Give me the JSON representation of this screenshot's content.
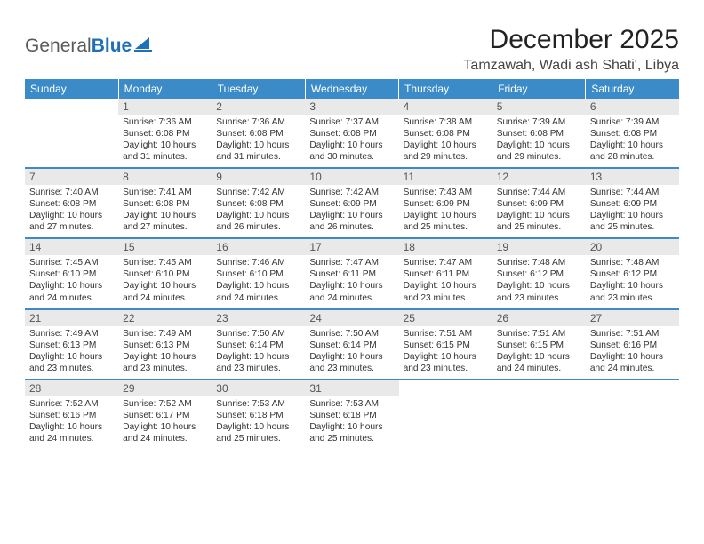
{
  "logo": {
    "gray": "General",
    "blue": "Blue",
    "sailColor": "#1f70b8"
  },
  "title": "December 2025",
  "location": "Tamzawah, Wadi ash Shati', Libya",
  "colors": {
    "headerBg": "#3b8bc8",
    "headerText": "#ffffff",
    "dayNumBg": "#e9e9e9",
    "rowBorder": "#3b8bc8"
  },
  "dayHeaders": [
    "Sunday",
    "Monday",
    "Tuesday",
    "Wednesday",
    "Thursday",
    "Friday",
    "Saturday"
  ],
  "weeks": [
    [
      null,
      {
        "n": "1",
        "sr": "7:36 AM",
        "ss": "6:08 PM",
        "dl": "10 hours and 31 minutes."
      },
      {
        "n": "2",
        "sr": "7:36 AM",
        "ss": "6:08 PM",
        "dl": "10 hours and 31 minutes."
      },
      {
        "n": "3",
        "sr": "7:37 AM",
        "ss": "6:08 PM",
        "dl": "10 hours and 30 minutes."
      },
      {
        "n": "4",
        "sr": "7:38 AM",
        "ss": "6:08 PM",
        "dl": "10 hours and 29 minutes."
      },
      {
        "n": "5",
        "sr": "7:39 AM",
        "ss": "6:08 PM",
        "dl": "10 hours and 29 minutes."
      },
      {
        "n": "6",
        "sr": "7:39 AM",
        "ss": "6:08 PM",
        "dl": "10 hours and 28 minutes."
      }
    ],
    [
      {
        "n": "7",
        "sr": "7:40 AM",
        "ss": "6:08 PM",
        "dl": "10 hours and 27 minutes."
      },
      {
        "n": "8",
        "sr": "7:41 AM",
        "ss": "6:08 PM",
        "dl": "10 hours and 27 minutes."
      },
      {
        "n": "9",
        "sr": "7:42 AM",
        "ss": "6:08 PM",
        "dl": "10 hours and 26 minutes."
      },
      {
        "n": "10",
        "sr": "7:42 AM",
        "ss": "6:09 PM",
        "dl": "10 hours and 26 minutes."
      },
      {
        "n": "11",
        "sr": "7:43 AM",
        "ss": "6:09 PM",
        "dl": "10 hours and 25 minutes."
      },
      {
        "n": "12",
        "sr": "7:44 AM",
        "ss": "6:09 PM",
        "dl": "10 hours and 25 minutes."
      },
      {
        "n": "13",
        "sr": "7:44 AM",
        "ss": "6:09 PM",
        "dl": "10 hours and 25 minutes."
      }
    ],
    [
      {
        "n": "14",
        "sr": "7:45 AM",
        "ss": "6:10 PM",
        "dl": "10 hours and 24 minutes."
      },
      {
        "n": "15",
        "sr": "7:45 AM",
        "ss": "6:10 PM",
        "dl": "10 hours and 24 minutes."
      },
      {
        "n": "16",
        "sr": "7:46 AM",
        "ss": "6:10 PM",
        "dl": "10 hours and 24 minutes."
      },
      {
        "n": "17",
        "sr": "7:47 AM",
        "ss": "6:11 PM",
        "dl": "10 hours and 24 minutes."
      },
      {
        "n": "18",
        "sr": "7:47 AM",
        "ss": "6:11 PM",
        "dl": "10 hours and 23 minutes."
      },
      {
        "n": "19",
        "sr": "7:48 AM",
        "ss": "6:12 PM",
        "dl": "10 hours and 23 minutes."
      },
      {
        "n": "20",
        "sr": "7:48 AM",
        "ss": "6:12 PM",
        "dl": "10 hours and 23 minutes."
      }
    ],
    [
      {
        "n": "21",
        "sr": "7:49 AM",
        "ss": "6:13 PM",
        "dl": "10 hours and 23 minutes."
      },
      {
        "n": "22",
        "sr": "7:49 AM",
        "ss": "6:13 PM",
        "dl": "10 hours and 23 minutes."
      },
      {
        "n": "23",
        "sr": "7:50 AM",
        "ss": "6:14 PM",
        "dl": "10 hours and 23 minutes."
      },
      {
        "n": "24",
        "sr": "7:50 AM",
        "ss": "6:14 PM",
        "dl": "10 hours and 23 minutes."
      },
      {
        "n": "25",
        "sr": "7:51 AM",
        "ss": "6:15 PM",
        "dl": "10 hours and 23 minutes."
      },
      {
        "n": "26",
        "sr": "7:51 AM",
        "ss": "6:15 PM",
        "dl": "10 hours and 24 minutes."
      },
      {
        "n": "27",
        "sr": "7:51 AM",
        "ss": "6:16 PM",
        "dl": "10 hours and 24 minutes."
      }
    ],
    [
      {
        "n": "28",
        "sr": "7:52 AM",
        "ss": "6:16 PM",
        "dl": "10 hours and 24 minutes."
      },
      {
        "n": "29",
        "sr": "7:52 AM",
        "ss": "6:17 PM",
        "dl": "10 hours and 24 minutes."
      },
      {
        "n": "30",
        "sr": "7:53 AM",
        "ss": "6:18 PM",
        "dl": "10 hours and 25 minutes."
      },
      {
        "n": "31",
        "sr": "7:53 AM",
        "ss": "6:18 PM",
        "dl": "10 hours and 25 minutes."
      },
      null,
      null,
      null
    ]
  ],
  "labels": {
    "sunrise": "Sunrise: ",
    "sunset": "Sunset: ",
    "daylight": "Daylight: "
  }
}
